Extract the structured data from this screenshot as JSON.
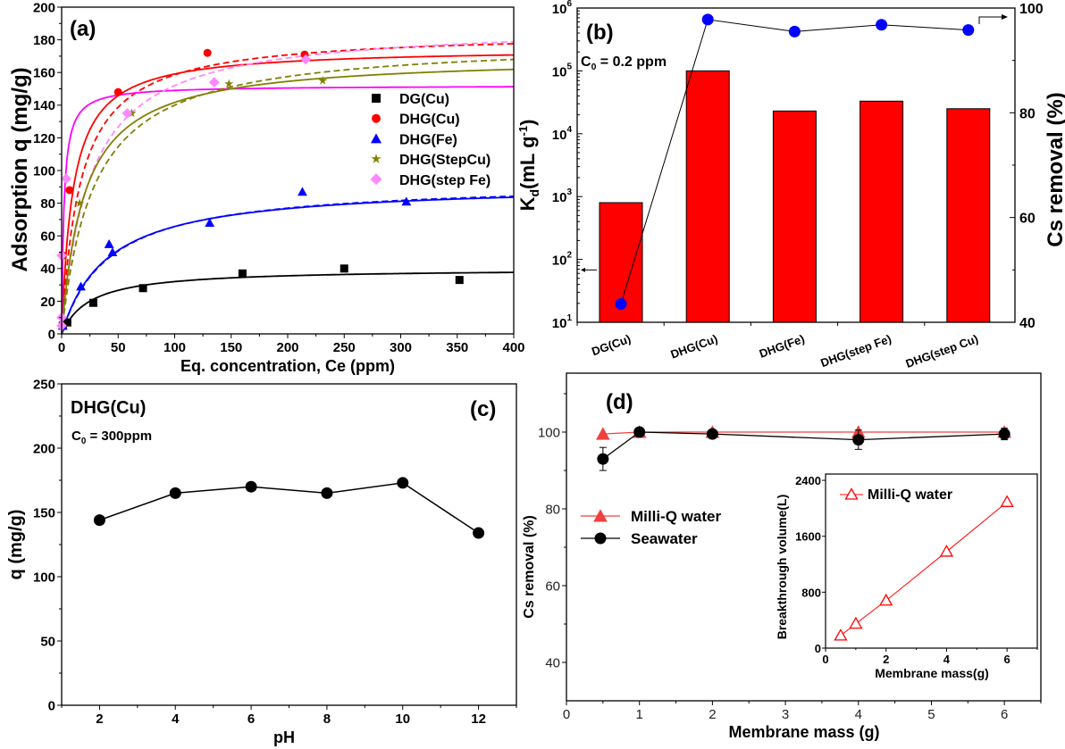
{
  "chart_data": [
    {
      "type": "scatter",
      "panel_label": "(a)",
      "xlabel": "Eq. concentration, Ce (ppm)",
      "ylabel": "Adsorption q (mg/g)",
      "xlim": [
        0,
        400
      ],
      "ylim": [
        0,
        200
      ],
      "xticks": [
        "0",
        "50",
        "100",
        "150",
        "200",
        "250",
        "300",
        "350",
        "400"
      ],
      "yticks": [
        "0",
        "20",
        "40",
        "60",
        "80",
        "100",
        "120",
        "140",
        "160",
        "180",
        "200"
      ],
      "legend_position": "right",
      "series": [
        {
          "name": "DG(Cu)",
          "color": "#000000",
          "marker": "square",
          "points": [
            [
              1,
              5
            ],
            [
              5,
              7
            ],
            [
              28,
              19
            ],
            [
              72,
              28
            ],
            [
              160,
              37
            ],
            [
              250,
              40
            ],
            [
              352,
              33
            ]
          ]
        },
        {
          "name": "DHG(Cu)",
          "color": "#ff0000",
          "marker": "circle",
          "points": [
            [
              1,
              48
            ],
            [
              7,
              88
            ],
            [
              50,
              148
            ],
            [
              129,
              172
            ],
            [
              215,
              171
            ]
          ]
        },
        {
          "name": "DHG(Fe)",
          "color": "#0000ff",
          "marker": "triangle",
          "points": [
            [
              1,
              5
            ],
            [
              17,
              29
            ],
            [
              42,
              55
            ],
            [
              45,
              50
            ],
            [
              131,
              68
            ],
            [
              213,
              87
            ],
            [
              305,
              81
            ]
          ]
        },
        {
          "name": "DHG(StepCu)",
          "color": "#808000",
          "marker": "star",
          "points": [
            [
              1,
              48
            ],
            [
              16,
              80
            ],
            [
              62,
              135
            ],
            [
              148,
              153
            ],
            [
              231,
              155
            ]
          ]
        },
        {
          "name": "DHG(step Fe)",
          "color": "#ff88ff",
          "marker": "diamond",
          "points": [
            [
              0,
              5
            ],
            [
              0,
              10
            ],
            [
              0,
              48
            ],
            [
              4,
              95
            ],
            [
              58,
              135
            ],
            [
              135,
              154
            ],
            [
              216,
              168
            ]
          ]
        }
      ],
      "fit_curves": [
        {
          "series": "DG(Cu)",
          "color": "#000000",
          "style": "solid",
          "qm": 40,
          "K": 0.04
        },
        {
          "series": "DHG(Fe)",
          "color": "#0000ff",
          "style": "solid",
          "qm": 92,
          "K": 0.025
        },
        {
          "series": "DHG(Fe)",
          "color": "#0000ff",
          "style": "dashed",
          "qm": 93,
          "K": 0.024
        },
        {
          "series": "DHG(Cu)",
          "color": "#ff0000",
          "style": "solid",
          "qm": 175,
          "K": 0.1
        },
        {
          "series": "DHG(Cu)",
          "color": "#ff0000",
          "style": "dashed",
          "qm": 185,
          "K": 0.06
        },
        {
          "series": "DHG(step Fe)",
          "color": "#ff00ff",
          "style": "solid",
          "qm": 152,
          "K": 0.5
        },
        {
          "series": "DHG(step Fe)",
          "color": "#ff88ff",
          "style": "dashed",
          "qm": 190,
          "K": 0.04
        },
        {
          "series": "DHG(StepCu)",
          "color": "#808000",
          "style": "solid",
          "qm": 170,
          "K": 0.05
        },
        {
          "series": "DHG(StepCu)",
          "color": "#808000",
          "style": "dashed",
          "qm": 180,
          "K": 0.035
        }
      ]
    },
    {
      "type": "bar",
      "panel_label": "(b)",
      "annotation": {
        "main": "C",
        "sub": "0",
        "rest": " = 0.2 ppm"
      },
      "ylabel": {
        "main": "K",
        "sub": "d",
        "mid": "(mL g",
        "sup": "-1",
        "end": ")"
      },
      "y2label": "Cs removal (%)",
      "yscale": "log",
      "ylim": [
        10,
        1000000
      ],
      "y2lim": [
        40,
        100
      ],
      "yticks": [
        {
          "base": "10",
          "exp": "1"
        },
        {
          "base": "10",
          "exp": "2"
        },
        {
          "base": "10",
          "exp": "3"
        },
        {
          "base": "10",
          "exp": "4"
        },
        {
          "base": "10",
          "exp": "5"
        },
        {
          "base": "10",
          "exp": "6"
        }
      ],
      "y2ticks": [
        "40",
        "60",
        "80",
        "100"
      ],
      "categories": [
        "DG(Cu)",
        "DHG(Cu)",
        "DHG(Fe)",
        "DHG(step Fe)",
        "DHG(step Cu)"
      ],
      "bar_color": "#ff0000",
      "line_color": "#0000ff",
      "series": [
        {
          "axis": "left",
          "values": [
            800,
            100000,
            23000,
            33000,
            25000
          ]
        },
        {
          "axis": "right",
          "values": [
            43.5,
            97.8,
            95.5,
            96.8,
            95.8
          ]
        }
      ]
    },
    {
      "type": "line",
      "panel_label": "(c)",
      "title": "DHG(Cu)",
      "annotation": {
        "main": "C",
        "sub": "0",
        "rest": " = 300ppm"
      },
      "xlabel": "pH",
      "ylabel": "q (mg/g)",
      "xlim": [
        1,
        13
      ],
      "ylim": [
        0,
        250
      ],
      "xticks": [
        "2",
        "4",
        "6",
        "8",
        "10",
        "12"
      ],
      "yticks": [
        "0",
        "50",
        "100",
        "150",
        "200",
        "250"
      ],
      "x": [
        2,
        4,
        6,
        8,
        10,
        12
      ],
      "values": [
        144,
        165,
        170,
        165,
        173,
        134
      ]
    },
    {
      "type": "line",
      "panel_label": "(d)",
      "xlabel": "Membrane mass (g)",
      "ylabel": "Cs removal (%)",
      "xlim": [
        0,
        6.5
      ],
      "ylim": [
        30,
        115
      ],
      "xticks": [
        "0",
        "1",
        "2",
        "3",
        "4",
        "5",
        "6"
      ],
      "yticks": [
        "40",
        "60",
        "80",
        "100"
      ],
      "legend_position": "left",
      "series": [
        {
          "name": "Milli-Q water",
          "color": "#f04040",
          "marker": "triangle",
          "x": [
            0.5,
            1,
            2,
            4,
            6
          ],
          "values": [
            99.5,
            100,
            100,
            100,
            100
          ],
          "errors": [
            0,
            0,
            0,
            0,
            0
          ]
        },
        {
          "name": "Seawater",
          "color": "#000000",
          "marker": "circle",
          "x": [
            0.5,
            1,
            2,
            4,
            6
          ],
          "values": [
            93,
            100,
            99.5,
            98,
            99.5
          ],
          "errors": [
            3,
            0.5,
            1,
            2.5,
            1.5
          ]
        }
      ]
    },
    {
      "type": "line",
      "panel_label": "",
      "inset_of": "(d)",
      "xlabel": "Membrane mass(g)",
      "ylabel": "Breakthrough volume(L)",
      "xlim": [
        0,
        7
      ],
      "ylim": [
        0,
        2490
      ],
      "xticks": [
        "0",
        "2",
        "4",
        "6"
      ],
      "yticks": [
        "0",
        "800",
        "1600",
        "2400"
      ],
      "series": [
        {
          "name": "Milli-Q water",
          "color": "#ff0000",
          "marker": "open-triangle",
          "x": [
            0.5,
            1,
            2,
            4,
            6
          ],
          "values": [
            180,
            350,
            680,
            1380,
            2090
          ]
        }
      ]
    }
  ]
}
